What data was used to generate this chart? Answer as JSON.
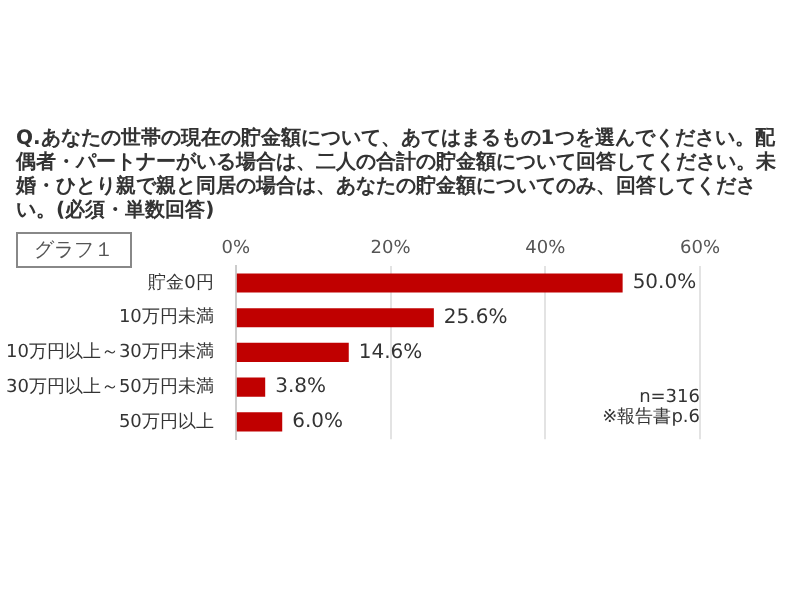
{
  "chart_data": {
    "type": "bar",
    "orientation": "horizontal",
    "title": "Q.あなたの世帯の現在の貯金額について、あてはまるもの1つを選んでください。配偶者・パートナーがいる場合は、二人の合計の貯金額について回答してください。未婚・ひとり親で親と同居の場合は、あなたの貯金額についてのみ、回答してください。(必須・単数回答)",
    "categories": [
      "貯金0円",
      "10万円未満",
      "10万円以上～30万円未満",
      "30万円以上～50万円未満",
      "50万円以上"
    ],
    "values": [
      50.0,
      25.6,
      14.6,
      3.8,
      6.0
    ],
    "value_labels": [
      "50.0%",
      "25.6%",
      "14.6%",
      "3.8%",
      "6.0%"
    ],
    "color": "#c00000",
    "xlim": [
      0,
      60
    ],
    "xticks": [
      {
        "value": 0,
        "label": "0%"
      },
      {
        "value": 20,
        "label": "20%"
      },
      {
        "value": 40,
        "label": "40%"
      },
      {
        "value": 60,
        "label": "60%"
      }
    ],
    "grid": "x",
    "annotations": [
      "グラフ１",
      "n=316",
      "※報告書p.6"
    ]
  }
}
